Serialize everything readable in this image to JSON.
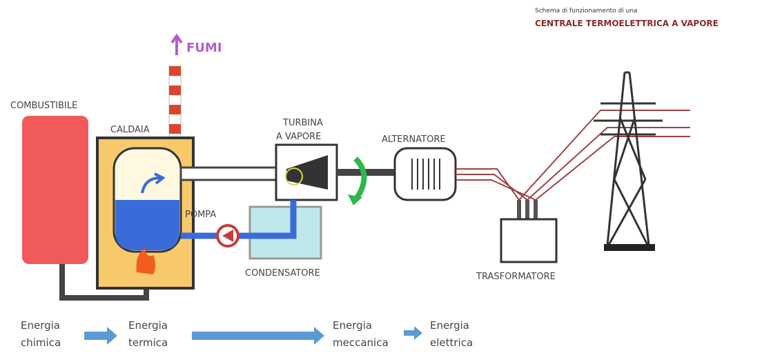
{
  "header": {
    "subtitle": "Schema di funzionamento di una",
    "title": "CENTRALE  TERMOELETTRICA A VAPORE"
  },
  "labels": {
    "fumi": "FUMI",
    "combustibile": "COMBUSTIBILE",
    "caldaia": "CALDAIA",
    "turbina": [
      "TURBINA",
      "A  VAPORE"
    ],
    "alternatore": "ALTERNATORE",
    "pompa": "POMPA",
    "condensatore": "CONDENSATORE",
    "trasformatore": "TRASFORMATORE"
  },
  "energy_flow": [
    [
      "Energia",
      "chimica"
    ],
    [
      "Energia",
      "termica"
    ],
    [
      "Energia",
      "meccanica"
    ],
    [
      "Energia",
      "elettrica"
    ]
  ]
}
